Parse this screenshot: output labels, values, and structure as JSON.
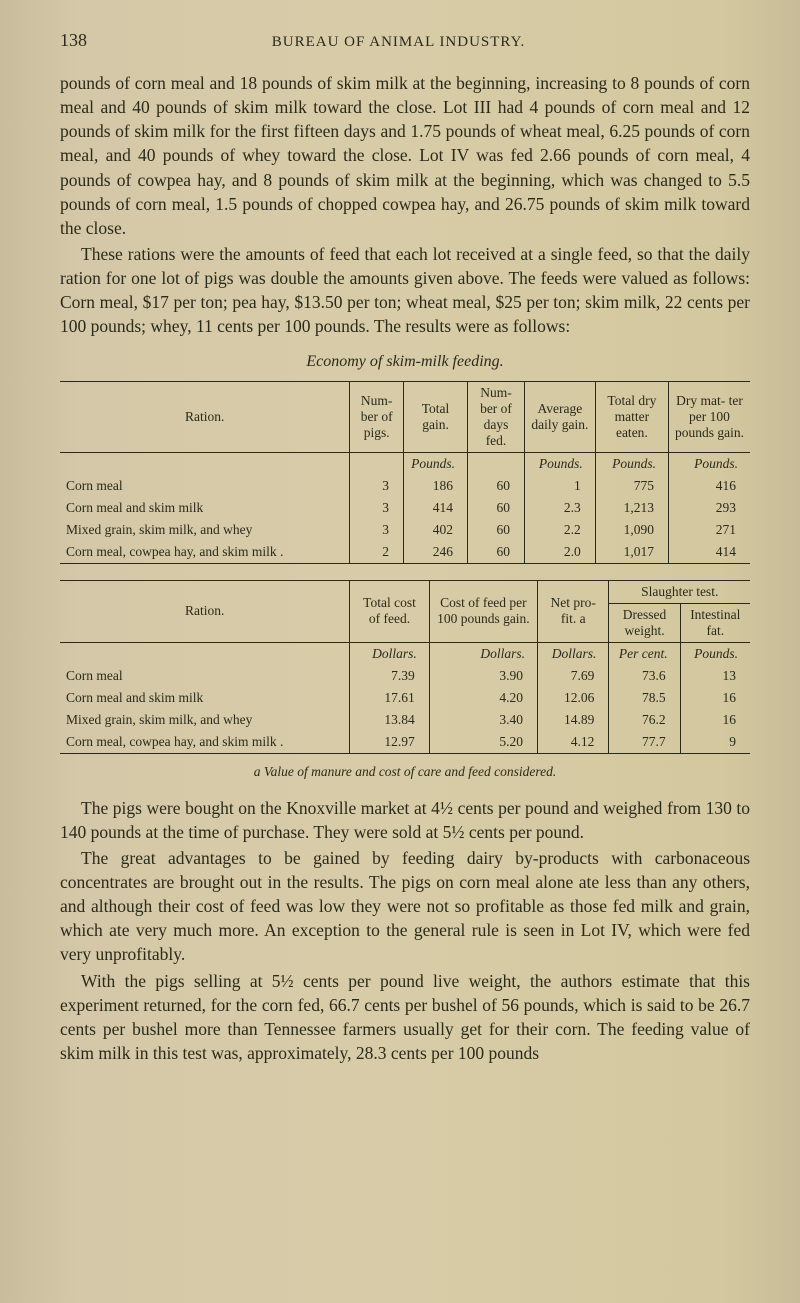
{
  "pageNumber": "138",
  "runningHead": "BUREAU OF ANIMAL INDUSTRY.",
  "paragraphs": {
    "p1": "pounds of corn meal and 18 pounds of skim milk at the beginning, increasing to 8 pounds of corn meal and 40 pounds of skim milk toward the close. Lot III had 4 pounds of corn meal and 12 pounds of skim milk for the first fifteen days and 1.75 pounds of wheat meal, 6.25 pounds of corn meal, and 40 pounds of whey toward the close. Lot IV was fed 2.66 pounds of corn meal, 4 pounds of cowpea hay, and 8 pounds of skim milk at the beginning, which was changed to 5.5 pounds of corn meal, 1.5 pounds of chopped cowpea hay, and 26.75 pounds of skim milk toward the close.",
    "p2": "These rations were the amounts of feed that each lot received at a single feed, so that the daily ration for one lot of pigs was double the amounts given above. The feeds were valued as follows: Corn meal, $17 per ton; pea hay, $13.50 per ton; wheat meal, $25 per ton; skim milk, 22 cents per 100 pounds; whey, 11 cents per 100 pounds. The results were as follows:",
    "p3": "The pigs were bought on the Knoxville market at 4½ cents per pound and weighed from 130 to 140 pounds at the time of purchase. They were sold at 5½ cents per pound.",
    "p4": "The great advantages to be gained by feeding dairy by-products with carbonaceous concentrates are brought out in the results. The pigs on corn meal alone ate less than any others, and although their cost of feed was low they were not so profitable as those fed milk and grain, which ate very much more. An exception to the general rule is seen in Lot IV, which were fed very unprofitably.",
    "p5": "With the pigs selling at 5½ cents per pound live weight, the authors estimate that this experiment returned, for the corn fed, 66.7 cents per bushel of 56 pounds, which is said to be 26.7 cents per bushel more than Tennessee farmers usually get for their corn. The feeding value of skim milk in this test was, approximately, 28.3 cents per 100 pounds"
  },
  "tableCaption": "Economy of skim-milk feeding.",
  "table1": {
    "headers": {
      "ration": "Ration.",
      "numPigs": "Num-\nber of\npigs.",
      "totalGain": "Total\ngain.",
      "numDays": "Num-\nber of\ndays\nfed.",
      "avgDaily": "Average\ndaily\ngain.",
      "totalDry": "Total dry\nmatter\neaten.",
      "dryMat": "Dry mat-\nter per 100\npounds\ngain."
    },
    "units": {
      "totalGain": "Pounds.",
      "avgDaily": "Pounds.",
      "totalDry": "Pounds.",
      "dryMat": "Pounds."
    },
    "rows": [
      {
        "ration": "Corn meal",
        "numPigs": "3",
        "totalGain": "186",
        "numDays": "60",
        "avgDaily": "1",
        "totalDry": "775",
        "dryMat": "416"
      },
      {
        "ration": "Corn meal and skim milk",
        "numPigs": "3",
        "totalGain": "414",
        "numDays": "60",
        "avgDaily": "2.3",
        "totalDry": "1,213",
        "dryMat": "293"
      },
      {
        "ration": "Mixed grain, skim milk, and whey",
        "numPigs": "3",
        "totalGain": "402",
        "numDays": "60",
        "avgDaily": "2.2",
        "totalDry": "1,090",
        "dryMat": "271"
      },
      {
        "ration": "Corn meal, cowpea hay, and skim milk .",
        "numPigs": "2",
        "totalGain": "246",
        "numDays": "60",
        "avgDaily": "2.0",
        "totalDry": "1,017",
        "dryMat": "414"
      }
    ]
  },
  "table2": {
    "headers": {
      "ration": "Ration.",
      "totalCost": "Total cost\nof feed.",
      "costFeed": "Cost of\nfeed per\n100 pounds\ngain.",
      "netProfit": "Net pro-\nfit. a",
      "slaughter": "Slaughter test.",
      "dressed": "Dressed\nweight.",
      "intestinal": "Intestinal\nfat."
    },
    "units": {
      "totalCost": "Dollars.",
      "costFeed": "Dollars.",
      "netProfit": "Dollars.",
      "dressed": "Per cent.",
      "intestinal": "Pounds."
    },
    "rows": [
      {
        "ration": "Corn meal",
        "totalCost": "7.39",
        "costFeed": "3.90",
        "netProfit": "7.69",
        "dressed": "73.6",
        "intestinal": "13"
      },
      {
        "ration": "Corn meal and skim milk",
        "totalCost": "17.61",
        "costFeed": "4.20",
        "netProfit": "12.06",
        "dressed": "78.5",
        "intestinal": "16"
      },
      {
        "ration": "Mixed grain, skim milk, and whey",
        "totalCost": "13.84",
        "costFeed": "3.40",
        "netProfit": "14.89",
        "dressed": "76.2",
        "intestinal": "16"
      },
      {
        "ration": "Corn meal, cowpea hay, and skim milk .",
        "totalCost": "12.97",
        "costFeed": "5.20",
        "netProfit": "4.12",
        "dressed": "77.7",
        "intestinal": "9"
      }
    ]
  },
  "footnote": "a Value of manure and cost of care and feed considered."
}
